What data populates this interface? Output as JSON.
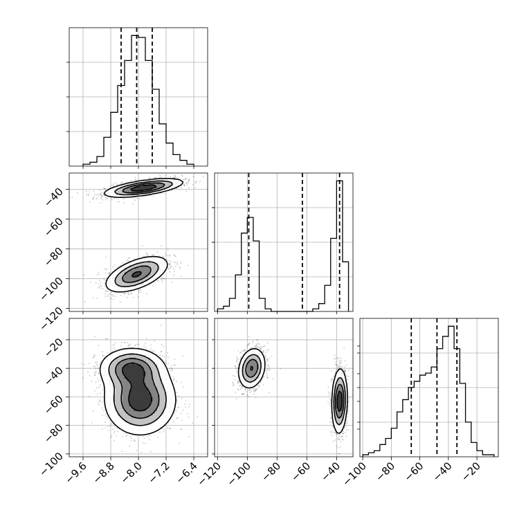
{
  "chart_data": {
    "type": "corner",
    "parameters": [
      "",
      "",
      ""
    ],
    "axis_ranges": {
      "p0": [
        -10.0,
        -6.0
      ],
      "p1": [
        -122.0,
        -29.0
      ],
      "p2": [
        -102.0,
        -5.0
      ]
    },
    "tick_labels": {
      "p0": [
        "−9.6",
        "−8.8",
        "−8.0",
        "−7.2",
        "−6.4"
      ],
      "p1": [
        "−120",
        "−100",
        "−80",
        "−60",
        "−40"
      ],
      "p2": [
        "−100",
        "−80",
        "−60",
        "−40",
        "−20"
      ]
    },
    "grid": true,
    "histograms": [
      {
        "param": "p0",
        "edges": [
          -9.6,
          -9.4,
          -9.2,
          -9.0,
          -8.8,
          -8.6,
          -8.4,
          -8.2,
          -8.0,
          -7.8,
          -7.6,
          -7.4,
          -7.2,
          -7.0,
          -6.8,
          -6.6,
          -6.4
        ],
        "counts": [
          1,
          2,
          5,
          15,
          28,
          42,
          55,
          68,
          67,
          55,
          40,
          22,
          12,
          6,
          3,
          1
        ],
        "quantiles": [
          -8.5,
          -8.05,
          -7.6
        ]
      },
      {
        "param": "p1",
        "edges": [
          -120,
          -116,
          -112,
          -108,
          -104,
          -100,
          -96,
          -92,
          -88,
          -84,
          -80,
          -76,
          -72,
          -68,
          -64,
          -60,
          -56,
          -52,
          -48,
          -44,
          -40,
          -36,
          -32
        ],
        "counts": [
          1,
          2,
          5,
          14,
          30,
          36,
          27,
          5,
          1,
          0,
          0,
          0,
          0,
          0,
          0,
          0,
          1,
          3,
          10,
          28,
          50,
          19
        ],
        "quantiles": [
          -99,
          -63,
          -38
        ]
      },
      {
        "param": "p2",
        "edges": [
          -100,
          -96,
          -92,
          -88,
          -84,
          -80,
          -76,
          -72,
          -68,
          -64,
          -60,
          -56,
          -52,
          -48,
          -44,
          -40,
          -36,
          -32,
          -28,
          -24,
          -20,
          -16,
          -12,
          -8
        ],
        "counts": [
          1,
          2,
          3,
          6,
          9,
          14,
          22,
          28,
          34,
          37,
          40,
          41,
          44,
          53,
          59,
          64,
          53,
          36,
          17,
          7,
          3,
          1,
          1
        ],
        "quantiles": [
          -66,
          -48,
          -34
        ]
      }
    ],
    "scatter_2d": [
      {
        "x": "p0",
        "y": "p1",
        "modes": [
          {
            "mean": [
              -7.85,
              -39
            ],
            "sd": [
              0.55,
              3.0
            ],
            "rho": 0.6,
            "weight": 0.55
          },
          {
            "mean": [
              -8.05,
              -97
            ],
            "sd": [
              0.45,
              6.0
            ],
            "rho": 0.55,
            "weight": 0.45
          }
        ],
        "contour_levels": [
          0.12,
          0.32,
          0.55,
          0.8
        ]
      },
      {
        "x": "p1",
        "y": "p2",
        "modes": [
          {
            "mean": [
              -97,
              -40
            ],
            "sd": [
              4.5,
              7.0
            ],
            "rho": 0.2,
            "weight": 0.45
          },
          {
            "mean": [
              -38,
              -63
            ],
            "sd": [
              2.5,
              11.0
            ],
            "rho": 0.1,
            "weight": 0.55
          }
        ],
        "contour_levels": [
          0.12,
          0.32,
          0.55,
          0.8
        ]
      },
      {
        "x": "p0",
        "y": "p2",
        "modes": [
          {
            "mean": [
              -8.2,
              -40
            ],
            "sd": [
              0.45,
              7.0
            ],
            "rho": 0.0,
            "weight": 0.45
          },
          {
            "mean": [
              -7.95,
              -62
            ],
            "sd": [
              0.5,
              12.0
            ],
            "rho": 0.0,
            "weight": 0.55
          }
        ],
        "contour_levels": [
          0.12,
          0.32,
          0.55,
          0.8
        ]
      }
    ]
  }
}
